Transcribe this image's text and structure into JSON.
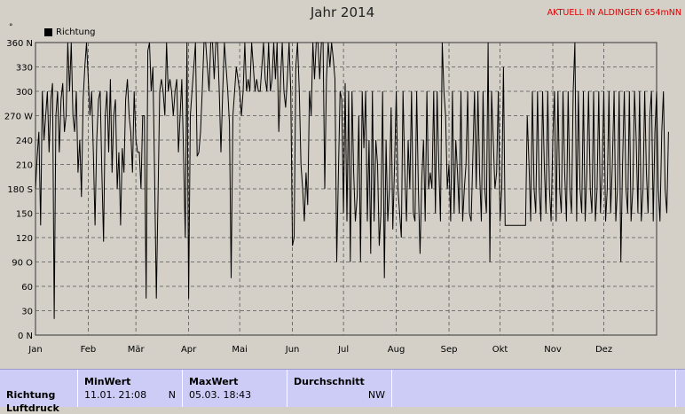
{
  "header": {
    "title": "Jahr 2014",
    "station": "AKTUELL IN ALDINGEN 654mNN",
    "degree_mark": "°"
  },
  "legend": {
    "label": "Richtung"
  },
  "colors": {
    "background": "#d4d0c8",
    "line": "#000000",
    "grid": "#555555",
    "station_text": "#e00000",
    "table_bg": "#ccccf6"
  },
  "chart_data": {
    "type": "line",
    "title": "Jahr 2014",
    "ylabel": "°",
    "ylim": [
      0,
      360
    ],
    "xlim": [
      0,
      365
    ],
    "y_ticks": [
      {
        "value": 360,
        "label": "360 N"
      },
      {
        "value": 330,
        "label": "330"
      },
      {
        "value": 300,
        "label": "300"
      },
      {
        "value": 270,
        "label": "270 W"
      },
      {
        "value": 240,
        "label": "240"
      },
      {
        "value": 210,
        "label": "210"
      },
      {
        "value": 180,
        "label": "180 S"
      },
      {
        "value": 150,
        "label": "150"
      },
      {
        "value": 120,
        "label": "120"
      },
      {
        "value": 90,
        "label": "90 O"
      },
      {
        "value": 60,
        "label": "60"
      },
      {
        "value": 30,
        "label": "30"
      },
      {
        "value": 0,
        "label": "0 N"
      }
    ],
    "x_ticks": [
      {
        "day": 0,
        "label": "Jan"
      },
      {
        "day": 31,
        "label": "Feb"
      },
      {
        "day": 59,
        "label": "Mär"
      },
      {
        "day": 90,
        "label": "Apr"
      },
      {
        "day": 120,
        "label": "Mai"
      },
      {
        "day": 151,
        "label": "Jun"
      },
      {
        "day": 181,
        "label": "Jul"
      },
      {
        "day": 212,
        "label": "Aug"
      },
      {
        "day": 243,
        "label": "Sep"
      },
      {
        "day": 273,
        "label": "Okt"
      },
      {
        "day": 304,
        "label": "Nov"
      },
      {
        "day": 334,
        "label": "Dez"
      }
    ],
    "grid": true,
    "legend_position": "top-left",
    "series": [
      {
        "name": "Richtung",
        "day_step": 1,
        "values": [
          180,
          220,
          250,
          135,
          300,
          240,
          270,
          300,
          225,
          290,
          310,
          20,
          270,
          300,
          225,
          290,
          310,
          250,
          270,
          360,
          300,
          360,
          270,
          250,
          300,
          200,
          240,
          170,
          290,
          330,
          360,
          315,
          270,
          300,
          225,
          135,
          240,
          290,
          300,
          200,
          115,
          270,
          300,
          225,
          315,
          200,
          270,
          290,
          180,
          225,
          135,
          230,
          200,
          290,
          315,
          270,
          250,
          200,
          300,
          240,
          225,
          225,
          180,
          270,
          270,
          45,
          350,
          360,
          300,
          330,
          200,
          45,
          170,
          300,
          315,
          300,
          270,
          360,
          300,
          315,
          300,
          270,
          300,
          315,
          225,
          270,
          315,
          225,
          120,
          360,
          45,
          270,
          300,
          330,
          360,
          220,
          225,
          250,
          300,
          360,
          360,
          330,
          300,
          360,
          360,
          315,
          360,
          360,
          300,
          225,
          300,
          360,
          330,
          300,
          260,
          70,
          270,
          300,
          330,
          315,
          300,
          270,
          300,
          360,
          300,
          315,
          300,
          360,
          330,
          300,
          315,
          300,
          300,
          330,
          360,
          315,
          300,
          360,
          300,
          315,
          360,
          315,
          360,
          250,
          315,
          360,
          300,
          280,
          315,
          360,
          300,
          110,
          120,
          330,
          360,
          300,
          210,
          180,
          140,
          200,
          160,
          300,
          270,
          360,
          315,
          360,
          360,
          315,
          360,
          360,
          180,
          315,
          360,
          330,
          360,
          340,
          315,
          90,
          200,
          300,
          290,
          150,
          310,
          140,
          300,
          90,
          300,
          200,
          140,
          170,
          270,
          90,
          300,
          230,
          300,
          140,
          240,
          100,
          300,
          140,
          240,
          210,
          110,
          150,
          300,
          70,
          240,
          140,
          180,
          280,
          130,
          210,
          300,
          180,
          150,
          120,
          300,
          200,
          140,
          240,
          180,
          300,
          150,
          140,
          300,
          180,
          100,
          190,
          240,
          140,
          300,
          180,
          200,
          180,
          300,
          150,
          300,
          210,
          140,
          360,
          300,
          270,
          180,
          210,
          140,
          300,
          150,
          240,
          200,
          150,
          300,
          140,
          180,
          210,
          300,
          150,
          140,
          220,
          300,
          180,
          300,
          200,
          140,
          300,
          180,
          150,
          360,
          90,
          300,
          240,
          180,
          200,
          300,
          140,
          180,
          330,
          135,
          135,
          135,
          135,
          135,
          135,
          135,
          135,
          135,
          135,
          135,
          135,
          135,
          270,
          210,
          140,
          300,
          180,
          150,
          300,
          180,
          140,
          300,
          210,
          150,
          300,
          180,
          140,
          240,
          300,
          140,
          300,
          180,
          150,
          300,
          200,
          140,
          300,
          180,
          150,
          300,
          360,
          140,
          300,
          180,
          150,
          300,
          140,
          200,
          300,
          180,
          150,
          300,
          140,
          180,
          300,
          150,
          200,
          300,
          140,
          180,
          300,
          150,
          210,
          300,
          140,
          180,
          300,
          90,
          210,
          300,
          180,
          150,
          300,
          140,
          180,
          300,
          240,
          150,
          300,
          140,
          180,
          300,
          200,
          150,
          270,
          300,
          140,
          250,
          300,
          180,
          140,
          250,
          300,
          180,
          150,
          250
        ]
      }
    ]
  },
  "table": {
    "row_label": "Richtung",
    "row_label2": "Luftdruck",
    "min": {
      "header": "MinWert",
      "time": "11.01.  21:08",
      "value": "N"
    },
    "max": {
      "header": "MaxWert",
      "time": "05.03.  18:43",
      "value": ""
    },
    "avg": {
      "header": "Durchschnitt",
      "value": "NW"
    }
  }
}
